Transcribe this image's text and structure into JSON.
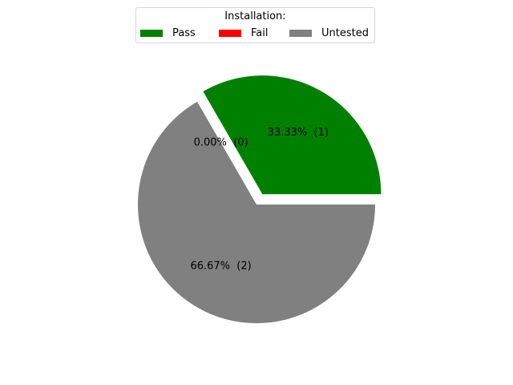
{
  "chart_data": {
    "type": "pie",
    "legend": {
      "title": "Installation:",
      "placement": "upper-center"
    },
    "categories": [
      "Pass",
      "Fail",
      "Untested"
    ],
    "values": [
      1,
      0,
      2
    ],
    "percent_labels": [
      "33.33%  (1)",
      "0.00%  (0)",
      "66.67%  (2)"
    ],
    "colors": [
      "#008000",
      "#ff0000",
      "#808080"
    ],
    "exploded": [
      true,
      false,
      false
    ],
    "start_angle_deg": 0,
    "direction": "counterclockwise"
  }
}
